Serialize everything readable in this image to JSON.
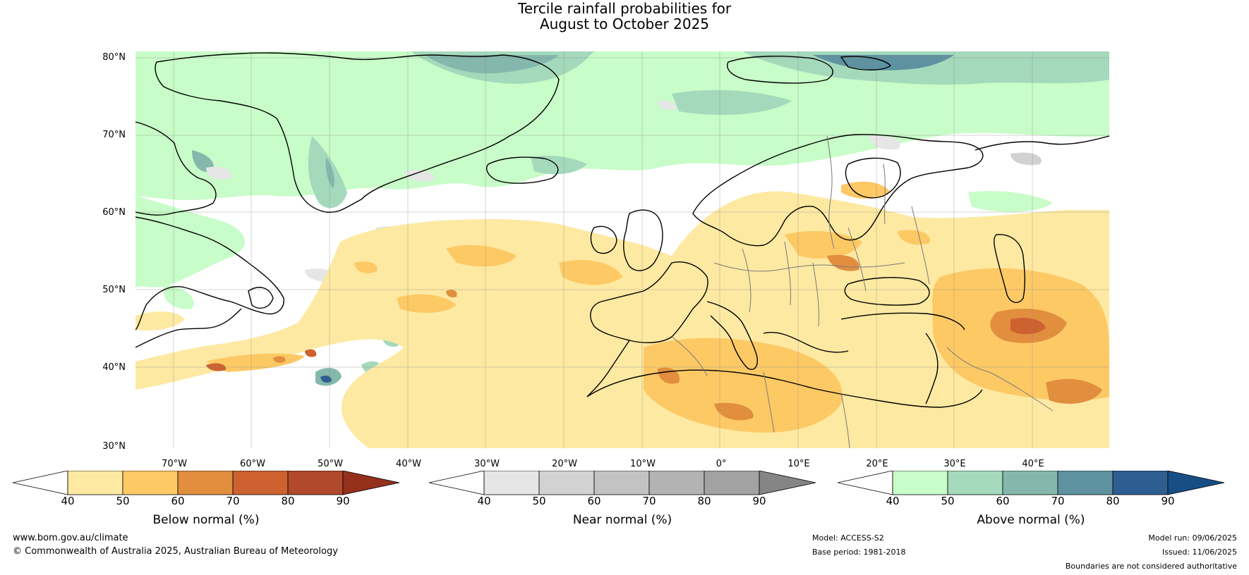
{
  "title": {
    "line1": "Tercile rainfall probabilities for",
    "line2": "August to October 2025"
  },
  "map": {
    "lat_labels": [
      "80°N",
      "70°N",
      "60°N",
      "50°N",
      "40°N",
      "30°N"
    ],
    "lon_labels": [
      "70°W",
      "60°W",
      "50°W",
      "40°W",
      "30°W",
      "20°W",
      "10°W",
      "0°",
      "10°E",
      "20°E",
      "30°E",
      "40°E"
    ]
  },
  "colorbars": {
    "below": {
      "title": "Below normal (%)",
      "ticks": [
        "40",
        "50",
        "60",
        "70",
        "80",
        "90"
      ],
      "colors": [
        "#ffffff",
        "#fde9a2",
        "#fdc965",
        "#e18e3f",
        "#cd6230",
        "#b04a2a",
        "#95301d"
      ]
    },
    "near": {
      "title": "Near normal (%)",
      "ticks": [
        "40",
        "50",
        "60",
        "70",
        "80",
        "90"
      ],
      "colors": [
        "#ffffff",
        "#e6e6e6",
        "#d2d2d2",
        "#c3c3c3",
        "#b3b3b3",
        "#a2a2a2",
        "#858585"
      ]
    },
    "above": {
      "title": "Above normal (%)",
      "ticks": [
        "40",
        "50",
        "60",
        "70",
        "80",
        "90"
      ],
      "colors": [
        "#ffffff",
        "#c8fcc8",
        "#a5d9bc",
        "#84b8ad",
        "#5e92a0",
        "#2e5d92",
        "#174f85"
      ]
    }
  },
  "footer": {
    "website": "www.bom.gov.au/climate",
    "copyright": "© Commonwealth of Australia 2025, Australian Bureau of Meteorology",
    "model": "Model: ACCESS-S2",
    "base_period": "Base period: 1981-2018",
    "model_run": "Model run: 09/06/2025",
    "issued": "Issued: 11/06/2025",
    "disclaimer": "Boundaries are not considered authoritative"
  }
}
